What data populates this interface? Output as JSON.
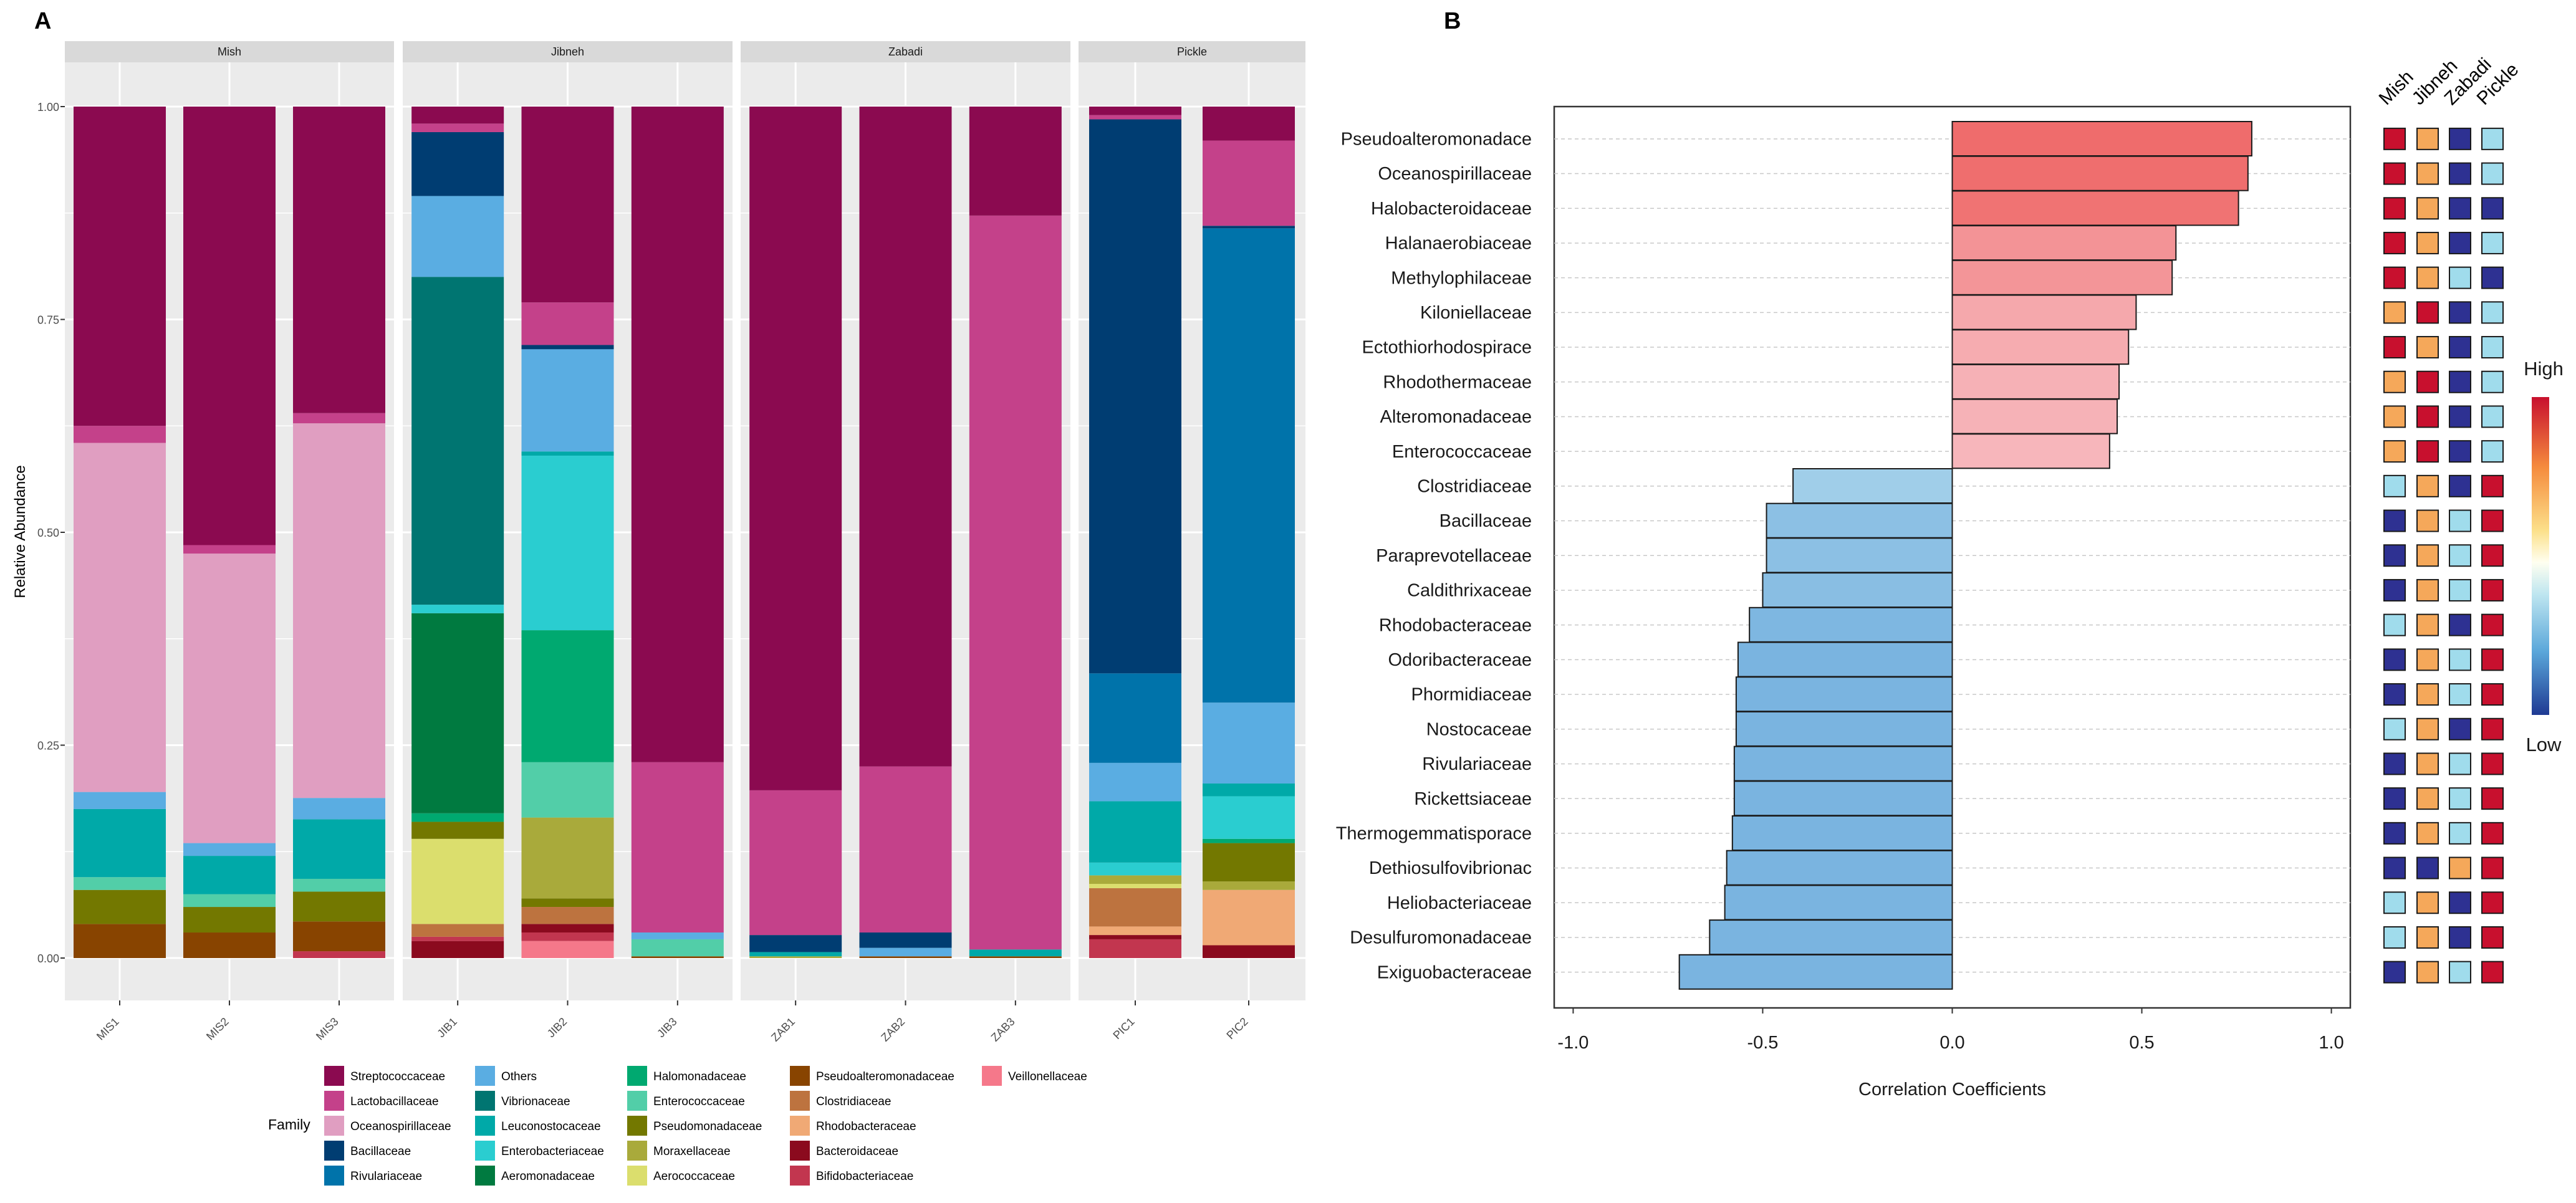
{
  "panel_a_label": "A",
  "panel_b_label": "B",
  "chart_data": [
    {
      "type": "stacked-bar",
      "panel": "A",
      "ylabel": "Relative Abundance",
      "xlabel": "",
      "ylim": [
        0,
        1
      ],
      "yticks": [
        "0.00",
        "0.25",
        "0.50",
        "0.75",
        "1.00"
      ],
      "legend_title": "Family",
      "legend_position": "bottom",
      "families": [
        {
          "name": "Streptococcaceae",
          "color": "#8B0A50"
        },
        {
          "name": "Lactobacillaceae",
          "color": "#C4418A"
        },
        {
          "name": "Oceanospirillaceae",
          "color": "#E09EC1"
        },
        {
          "name": "Bacillaceae",
          "color": "#003D72"
        },
        {
          "name": "Rivulariaceae",
          "color": "#0073AA"
        },
        {
          "name": "Others",
          "color": "#5AADE2"
        },
        {
          "name": "Vibrionaceae",
          "color": "#007571"
        },
        {
          "name": "Leuconostocaceae",
          "color": "#00A9A8"
        },
        {
          "name": "Enterobacteriaceae",
          "color": "#2ACDD0"
        },
        {
          "name": "Aeromonadaceae",
          "color": "#007A40"
        },
        {
          "name": "Halomonadaceae",
          "color": "#00A970"
        },
        {
          "name": "Enterococcaceae",
          "color": "#52CEA8"
        },
        {
          "name": "Pseudomonadaceae",
          "color": "#737800"
        },
        {
          "name": "Moraxellaceae",
          "color": "#A9AA3B"
        },
        {
          "name": "Aerococcaceae",
          "color": "#DBDE6D"
        },
        {
          "name": "Pseudoalteromonadaceae",
          "color": "#884400"
        },
        {
          "name": "Clostridiaceae",
          "color": "#BD733F"
        },
        {
          "name": "Rhodobacteraceae",
          "color": "#F0A975"
        },
        {
          "name": "Bacteroidaceae",
          "color": "#8B0A1E"
        },
        {
          "name": "Bifidobacteriaceae",
          "color": "#C2364F"
        },
        {
          "name": "Veillonellaceae",
          "color": "#F5788A"
        }
      ],
      "facets": [
        {
          "name": "Mish",
          "samples": [
            {
              "id": "MIS1",
              "stack": [
                [
                  "Pseudoalteromonadaceae",
                  0.04
                ],
                [
                  "Pseudomonadaceae",
                  0.04
                ],
                [
                  "Enterococcaceae",
                  0.015
                ],
                [
                  "Leuconostocaceae",
                  0.08
                ],
                [
                  "Others",
                  0.02
                ],
                [
                  "Oceanospirillaceae",
                  0.41
                ],
                [
                  "Lactobacillaceae",
                  0.02
                ],
                [
                  "Streptococcaceae",
                  0.375
                ]
              ]
            },
            {
              "id": "MIS2",
              "stack": [
                [
                  "Pseudoalteromonadaceae",
                  0.03
                ],
                [
                  "Pseudomonadaceae",
                  0.03
                ],
                [
                  "Enterococcaceae",
                  0.015
                ],
                [
                  "Leuconostocaceae",
                  0.045
                ],
                [
                  "Others",
                  0.015
                ],
                [
                  "Oceanospirillaceae",
                  0.34
                ],
                [
                  "Lactobacillaceae",
                  0.01
                ],
                [
                  "Streptococcaceae",
                  0.515
                ]
              ]
            },
            {
              "id": "MIS3",
              "stack": [
                [
                  "Bifidobacteriaceae",
                  0.008
                ],
                [
                  "Pseudoalteromonadaceae",
                  0.035
                ],
                [
                  "Pseudomonadaceae",
                  0.035
                ],
                [
                  "Enterococcaceae",
                  0.015
                ],
                [
                  "Leuconostocaceae",
                  0.07
                ],
                [
                  "Others",
                  0.025
                ],
                [
                  "Oceanospirillaceae",
                  0.44
                ],
                [
                  "Lactobacillaceae",
                  0.012
                ],
                [
                  "Streptococcaceae",
                  0.36
                ]
              ]
            }
          ]
        },
        {
          "name": "Jibneh",
          "samples": [
            {
              "id": "JIB1",
              "stack": [
                [
                  "Bacteroidaceae",
                  0.02
                ],
                [
                  "Bifidobacteriaceae",
                  0.005
                ],
                [
                  "Clostridiaceae",
                  0.015
                ],
                [
                  "Aerococcaceae",
                  0.1
                ],
                [
                  "Pseudomonadaceae",
                  0.02
                ],
                [
                  "Halomonadaceae",
                  0.01
                ],
                [
                  "Aeromonadaceae",
                  0.235
                ],
                [
                  "Enterobacteriaceae",
                  0.01
                ],
                [
                  "Vibrionaceae",
                  0.385
                ],
                [
                  "Others",
                  0.095
                ],
                [
                  "Bacillaceae",
                  0.075
                ],
                [
                  "Lactobacillaceae",
                  0.01
                ],
                [
                  "Streptococcaceae",
                  0.02
                ]
              ]
            },
            {
              "id": "JIB2",
              "stack": [
                [
                  "Veillonellaceae",
                  0.02
                ],
                [
                  "Bifidobacteriaceae",
                  0.01
                ],
                [
                  "Bacteroidaceae",
                  0.01
                ],
                [
                  "Clostridiaceae",
                  0.02
                ],
                [
                  "Pseudomonadaceae",
                  0.01
                ],
                [
                  "Moraxellaceae",
                  0.095
                ],
                [
                  "Enterococcaceae",
                  0.065
                ],
                [
                  "Halomonadaceae",
                  0.155
                ],
                [
                  "Enterobacteriaceae",
                  0.205
                ],
                [
                  "Leuconostocaceae",
                  0.005
                ],
                [
                  "Others",
                  0.12
                ],
                [
                  "Bacillaceae",
                  0.005
                ],
                [
                  "Lactobacillaceae",
                  0.05
                ],
                [
                  "Streptococcaceae",
                  0.23
                ]
              ]
            },
            {
              "id": "JIB3",
              "stack": [
                [
                  "Pseudoalteromonadaceae",
                  0.002
                ],
                [
                  "Enterococcaceae",
                  0.02
                ],
                [
                  "Others",
                  0.008
                ],
                [
                  "Lactobacillaceae",
                  0.2
                ],
                [
                  "Streptococcaceae",
                  0.77
                ]
              ]
            }
          ]
        },
        {
          "name": "Zabadi",
          "samples": [
            {
              "id": "ZAB1",
              "stack": [
                [
                  "Moraxellaceae",
                  0.002
                ],
                [
                  "Leuconostocaceae",
                  0.005
                ],
                [
                  "Bacillaceae",
                  0.02
                ],
                [
                  "Lactobacillaceae",
                  0.17
                ],
                [
                  "Streptococcaceae",
                  0.803
                ]
              ]
            },
            {
              "id": "ZAB2",
              "stack": [
                [
                  "Pseudoalteromonadaceae",
                  0.002
                ],
                [
                  "Others",
                  0.01
                ],
                [
                  "Bacillaceae",
                  0.018
                ],
                [
                  "Lactobacillaceae",
                  0.195
                ],
                [
                  "Streptococcaceae",
                  0.775
                ]
              ]
            },
            {
              "id": "ZAB3",
              "stack": [
                [
                  "Pseudoalteromonadaceae",
                  0.002
                ],
                [
                  "Leuconostocaceae",
                  0.008
                ],
                [
                  "Lactobacillaceae",
                  0.862
                ],
                [
                  "Streptococcaceae",
                  0.128
                ]
              ]
            }
          ]
        },
        {
          "name": "Pickle",
          "samples": [
            {
              "id": "PIC1",
              "stack": [
                [
                  "Bifidobacteriaceae",
                  0.022
                ],
                [
                  "Bacteroidaceae",
                  0.005
                ],
                [
                  "Rhodobacteraceae",
                  0.01
                ],
                [
                  "Clostridiaceae",
                  0.045
                ],
                [
                  "Aerococcaceae",
                  0.005
                ],
                [
                  "Moraxellaceae",
                  0.01
                ],
                [
                  "Enterobacteriaceae",
                  0.015
                ],
                [
                  "Leuconostocaceae",
                  0.072
                ],
                [
                  "Others",
                  0.045
                ],
                [
                  "Rivulariaceae",
                  0.105
                ],
                [
                  "Bacillaceae",
                  0.65
                ],
                [
                  "Lactobacillaceae",
                  0.005
                ],
                [
                  "Streptococcaceae",
                  0.01
                ]
              ]
            },
            {
              "id": "PIC2",
              "stack": [
                [
                  "Bacteroidaceae",
                  0.015
                ],
                [
                  "Rhodobacteraceae",
                  0.065
                ],
                [
                  "Moraxellaceae",
                  0.01
                ],
                [
                  "Pseudomonadaceae",
                  0.045
                ],
                [
                  "Halomonadaceae",
                  0.005
                ],
                [
                  "Enterobacteriaceae",
                  0.05
                ],
                [
                  "Leuconostocaceae",
                  0.015
                ],
                [
                  "Others",
                  0.095
                ],
                [
                  "Rivulariaceae",
                  0.557
                ],
                [
                  "Bacillaceae",
                  0.003
                ],
                [
                  "Lactobacillaceae",
                  0.1
                ],
                [
                  "Streptococcaceae",
                  0.04
                ]
              ]
            }
          ]
        }
      ]
    },
    {
      "type": "bar",
      "orientation": "horizontal",
      "panel": "B",
      "xlabel": "Correlation Coefficients",
      "ylabel": "",
      "xlim": [
        -1.05,
        1.05
      ],
      "xticks": [
        "-1.0",
        "-0.5",
        "0.0",
        "0.5",
        "1.0"
      ],
      "categories": [
        "Pseudoalteromonadace",
        "Oceanospirillaceae",
        "Halobacteroidaceae",
        "Halanaerobiaceae",
        "Methylophilaceae",
        "Kiloniellaceae",
        "Ectothiorhodospirace",
        "Rhodothermaceae",
        "Alteromonadaceae",
        "Enterococcaceae",
        "Clostridiaceae",
        "Bacillaceae",
        "Paraprevotellaceae",
        "Caldithrixaceae",
        "Rhodobacteraceae",
        "Odoribacteraceae",
        "Phormidiaceae",
        "Nostocaceae",
        "Rivulariaceae",
        "Rickettsiaceae",
        "Thermogemmatisporace",
        "Dethiosulfovibrionac",
        "Heliobacteriaceae",
        "Desulfuromonadaceae",
        "Exiguobacteraceae"
      ],
      "values": [
        0.79,
        0.78,
        0.755,
        0.59,
        0.58,
        0.485,
        0.465,
        0.44,
        0.435,
        0.415,
        -0.42,
        -0.49,
        -0.49,
        -0.5,
        -0.535,
        -0.565,
        -0.57,
        -0.57,
        -0.575,
        -0.575,
        -0.58,
        -0.595,
        -0.6,
        -0.64,
        -0.72
      ],
      "heatmap": {
        "columns": [
          "Mish",
          "Jibneh",
          "Zabadi",
          "Pickle"
        ],
        "levels": {
          "4": "#C8102E",
          "3": "#F5A85A",
          "2": "#A0DCEC",
          "1": "#2E3192"
        },
        "rows": [
          [
            4,
            3,
            1,
            2
          ],
          [
            4,
            3,
            1,
            2
          ],
          [
            4,
            3,
            1,
            1
          ],
          [
            4,
            3,
            1,
            2
          ],
          [
            4,
            3,
            2,
            1
          ],
          [
            3,
            4,
            1,
            2
          ],
          [
            4,
            3,
            1,
            2
          ],
          [
            3,
            4,
            1,
            2
          ],
          [
            3,
            4,
            1,
            2
          ],
          [
            3,
            4,
            1,
            2
          ],
          [
            2,
            3,
            1,
            4
          ],
          [
            1,
            3,
            2,
            4
          ],
          [
            1,
            3,
            2,
            4
          ],
          [
            1,
            3,
            2,
            4
          ],
          [
            2,
            3,
            1,
            4
          ],
          [
            1,
            3,
            2,
            4
          ],
          [
            1,
            3,
            2,
            4
          ],
          [
            2,
            3,
            1,
            4
          ],
          [
            1,
            3,
            2,
            4
          ],
          [
            1,
            3,
            2,
            4
          ],
          [
            1,
            3,
            2,
            4
          ],
          [
            1,
            1,
            3,
            4
          ],
          [
            2,
            3,
            1,
            4
          ],
          [
            2,
            3,
            1,
            4
          ],
          [
            1,
            3,
            2,
            4
          ]
        ]
      },
      "scale_high_label": "High",
      "scale_low_label": "Low"
    }
  ]
}
